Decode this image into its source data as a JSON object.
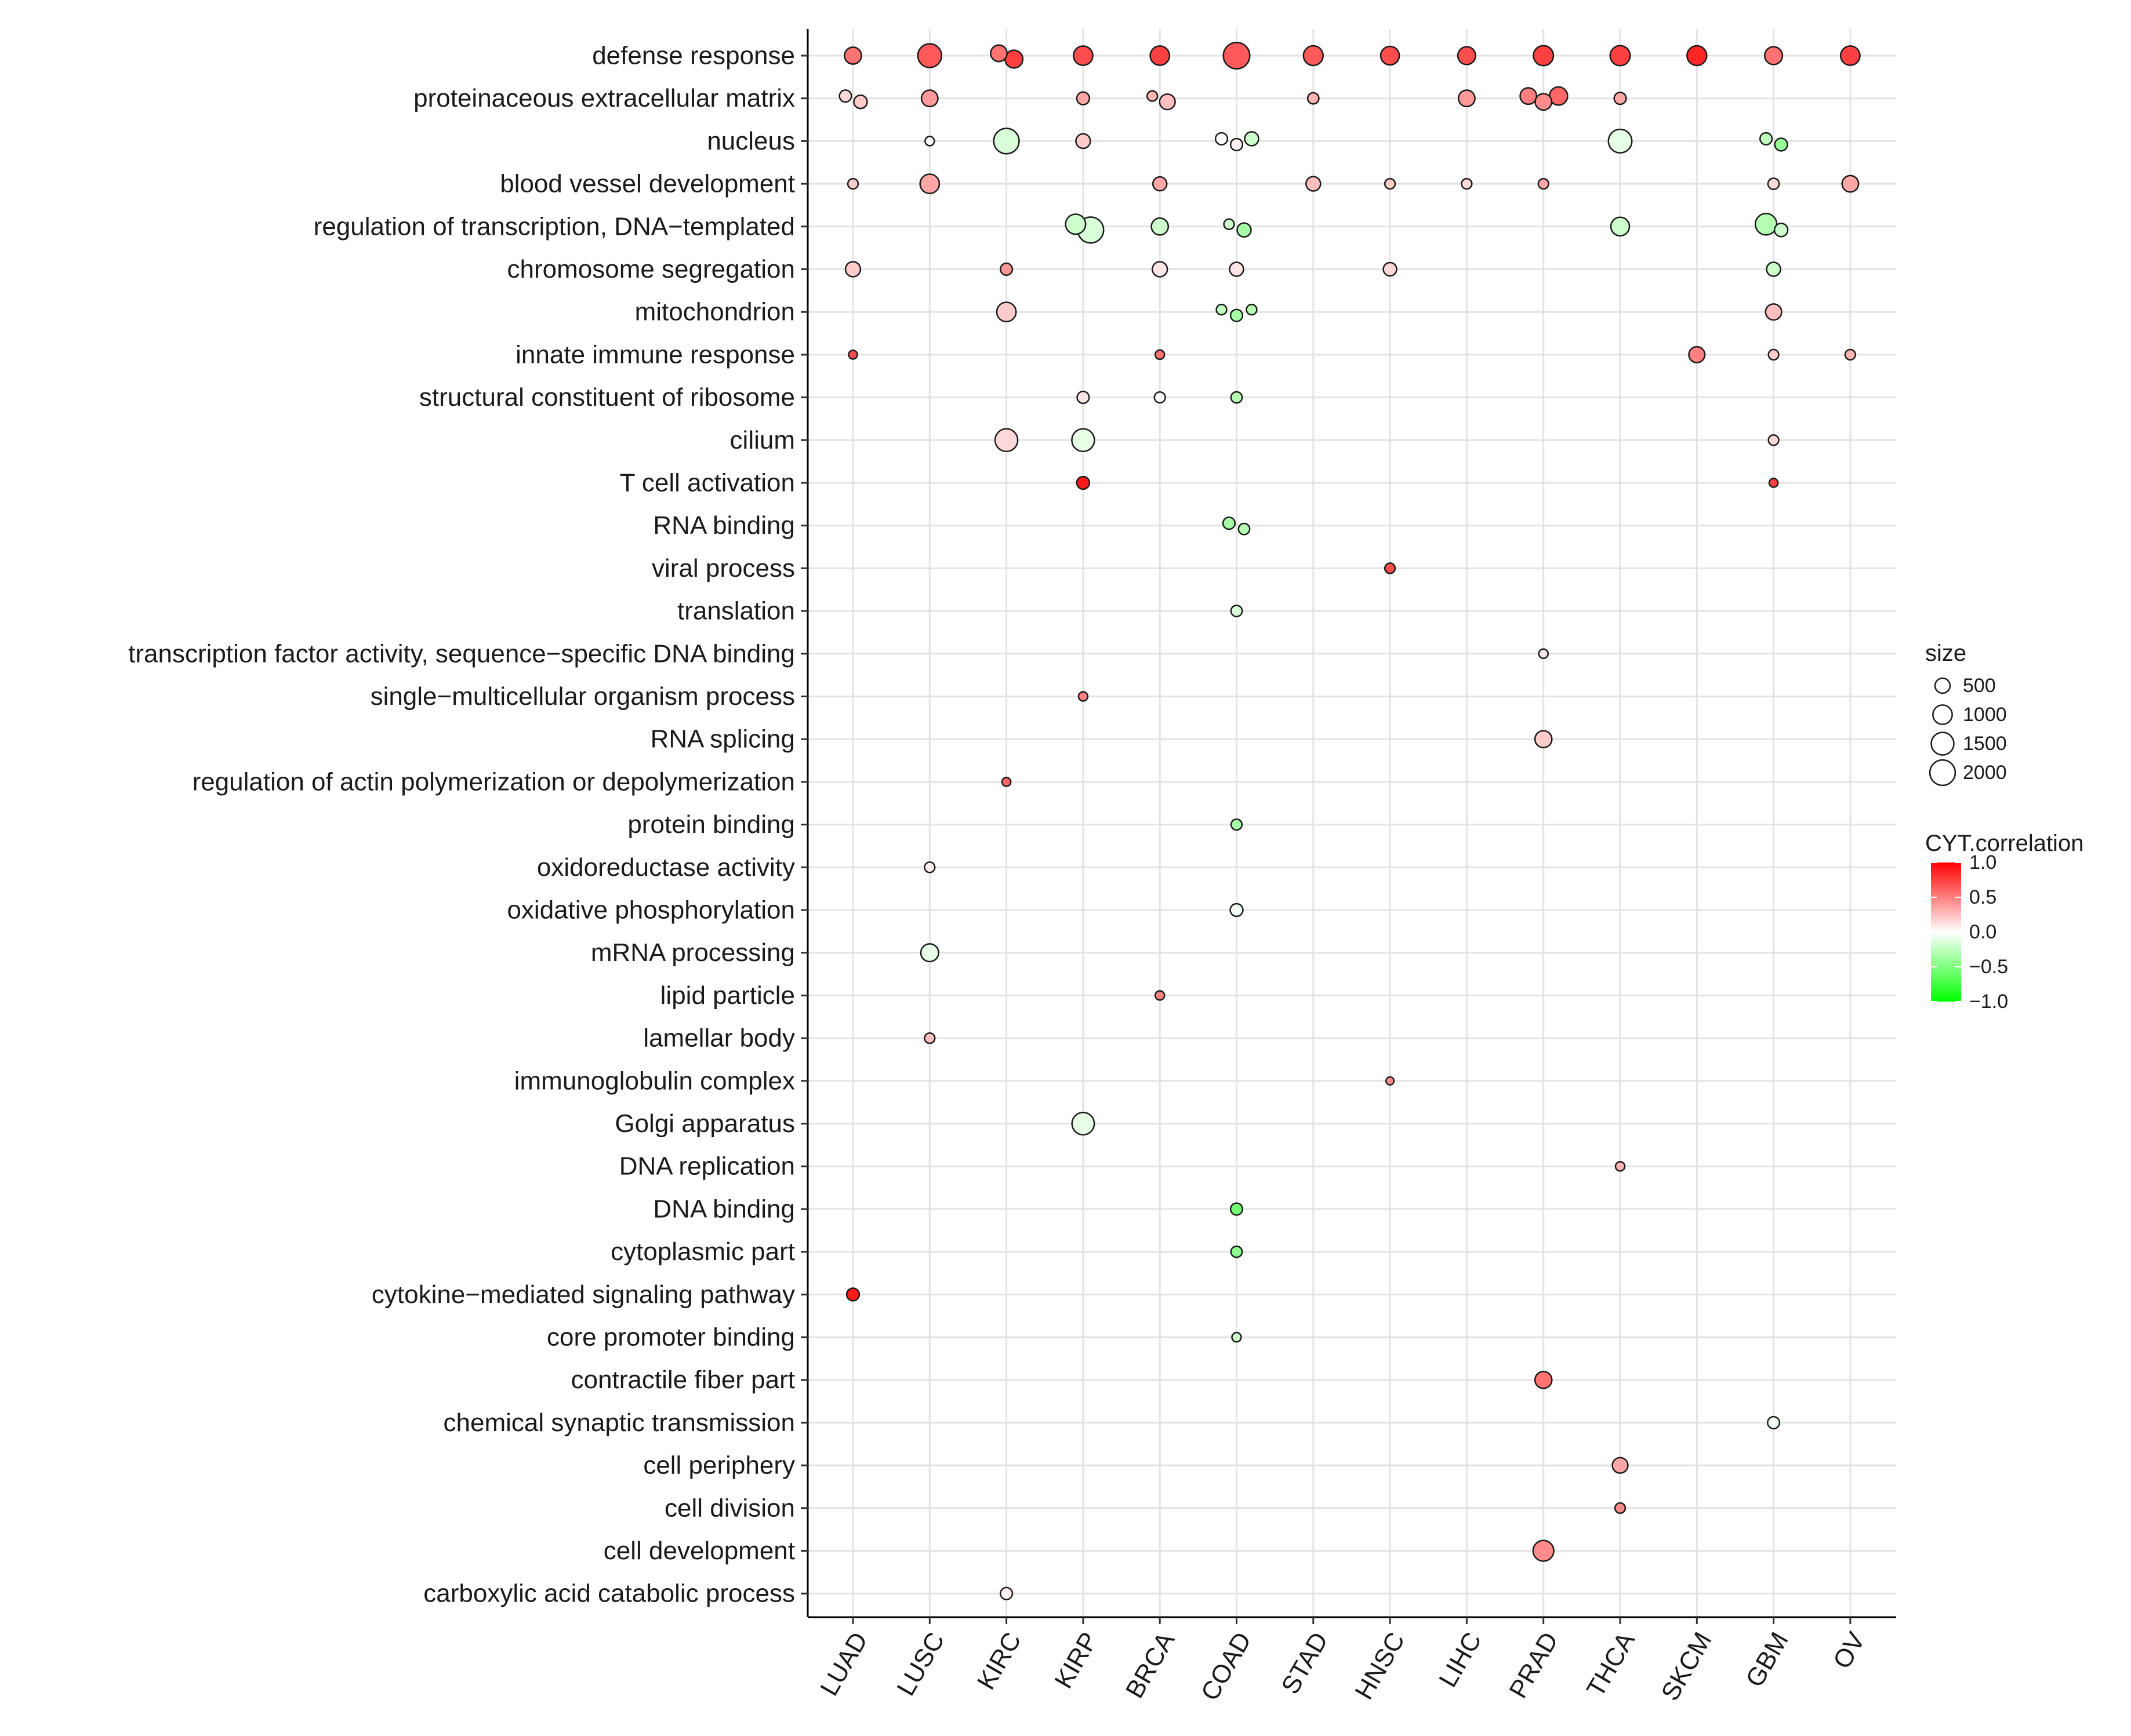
{
  "chart_data": {
    "type": "scatter",
    "x_categories": [
      "LUAD",
      "LUSC",
      "KIRC",
      "KIRP",
      "BRCA",
      "COAD",
      "STAD",
      "HNSC",
      "LIHC",
      "PRAD",
      "THCA",
      "SKCM",
      "GBM",
      "OV"
    ],
    "y_categories": [
      "defense response",
      "proteinaceous extracellular matrix",
      "nucleus",
      "blood vessel development",
      "regulation of transcription, DNA−templated",
      "chromosome segregation",
      "mitochondrion",
      "innate immune response",
      "structural constituent of ribosome",
      "cilium",
      "T cell activation",
      "RNA binding",
      "viral process",
      "translation",
      "transcription factor activity, sequence−specific DNA binding",
      "single−multicellular organism process",
      "RNA splicing",
      "regulation of actin polymerization or depolymerization",
      "protein binding",
      "oxidoreductase activity",
      "oxidative phosphorylation",
      "mRNA processing",
      "lipid particle",
      "lamellar body",
      "immunoglobulin complex",
      "Golgi apparatus",
      "DNA replication",
      "DNA binding",
      "cytoplasmic part",
      "cytokine−mediated signaling pathway",
      "core promoter binding",
      "contractile fiber part",
      "chemical synaptic transmission",
      "cell periphery",
      "cell division",
      "cell development",
      "carboxylic acid catabolic process"
    ],
    "points": [
      {
        "x": "LUAD",
        "y": "defense response",
        "size": 700,
        "cyt": 0.55
      },
      {
        "x": "LUSC",
        "y": "defense response",
        "size": 1700,
        "cyt": 0.65
      },
      {
        "x": "KIRC",
        "y": "defense response",
        "size": 650,
        "cyt": 0.55
      },
      {
        "x": "KIRC",
        "y": "defense response",
        "size": 800,
        "cyt": 0.75
      },
      {
        "x": "KIRP",
        "y": "defense response",
        "size": 1000,
        "cyt": 0.7
      },
      {
        "x": "BRCA",
        "y": "defense response",
        "size": 1000,
        "cyt": 0.75
      },
      {
        "x": "COAD",
        "y": "defense response",
        "size": 2200,
        "cyt": 0.65
      },
      {
        "x": "STAD",
        "y": "defense response",
        "size": 1050,
        "cyt": 0.65
      },
      {
        "x": "HNSC",
        "y": "defense response",
        "size": 900,
        "cyt": 0.7
      },
      {
        "x": "LIHC",
        "y": "defense response",
        "size": 800,
        "cyt": 0.7
      },
      {
        "x": "PRAD",
        "y": "defense response",
        "size": 1100,
        "cyt": 0.75
      },
      {
        "x": "THCA",
        "y": "defense response",
        "size": 1100,
        "cyt": 0.75
      },
      {
        "x": "SKCM",
        "y": "defense response",
        "size": 1050,
        "cyt": 0.85
      },
      {
        "x": "GBM",
        "y": "defense response",
        "size": 800,
        "cyt": 0.55
      },
      {
        "x": "OV",
        "y": "defense response",
        "size": 1000,
        "cyt": 0.75
      },
      {
        "x": "LUAD",
        "y": "proteinaceous extracellular matrix",
        "size": 250,
        "cyt": 0.15
      },
      {
        "x": "LUAD",
        "y": "proteinaceous extracellular matrix",
        "size": 350,
        "cyt": 0.2
      },
      {
        "x": "LUSC",
        "y": "proteinaceous extracellular matrix",
        "size": 650,
        "cyt": 0.4
      },
      {
        "x": "KIRP",
        "y": "proteinaceous extracellular matrix",
        "size": 300,
        "cyt": 0.35
      },
      {
        "x": "BRCA",
        "y": "proteinaceous extracellular matrix",
        "size": 150,
        "cyt": 0.3
      },
      {
        "x": "BRCA",
        "y": "proteinaceous extracellular matrix",
        "size": 550,
        "cyt": 0.25
      },
      {
        "x": "STAD",
        "y": "proteinaceous extracellular matrix",
        "size": 200,
        "cyt": 0.3
      },
      {
        "x": "LIHC",
        "y": "proteinaceous extracellular matrix",
        "size": 650,
        "cyt": 0.4
      },
      {
        "x": "PRAD",
        "y": "proteinaceous extracellular matrix",
        "size": 650,
        "cyt": 0.5
      },
      {
        "x": "PRAD",
        "y": "proteinaceous extracellular matrix",
        "size": 650,
        "cyt": 0.45
      },
      {
        "x": "PRAD",
        "y": "proteinaceous extracellular matrix",
        "size": 850,
        "cyt": 0.6
      },
      {
        "x": "THCA",
        "y": "proteinaceous extracellular matrix",
        "size": 250,
        "cyt": 0.35
      },
      {
        "x": "LUSC",
        "y": "nucleus",
        "size": 100,
        "cyt": 0.0
      },
      {
        "x": "KIRC",
        "y": "nucleus",
        "size": 2000,
        "cyt": -0.15
      },
      {
        "x": "KIRP",
        "y": "nucleus",
        "size": 450,
        "cyt": 0.2
      },
      {
        "x": "COAD",
        "y": "nucleus",
        "size": 250,
        "cyt": 0.0
      },
      {
        "x": "COAD",
        "y": "nucleus",
        "size": 250,
        "cyt": 0.05
      },
      {
        "x": "COAD",
        "y": "nucleus",
        "size": 400,
        "cyt": -0.2
      },
      {
        "x": "THCA",
        "y": "nucleus",
        "size": 1650,
        "cyt": -0.1
      },
      {
        "x": "GBM",
        "y": "nucleus",
        "size": 250,
        "cyt": -0.25
      },
      {
        "x": "GBM",
        "y": "nucleus",
        "size": 300,
        "cyt": -0.4
      },
      {
        "x": "LUAD",
        "y": "blood vessel development",
        "size": 150,
        "cyt": 0.2
      },
      {
        "x": "LUSC",
        "y": "blood vessel development",
        "size": 1000,
        "cyt": 0.35
      },
      {
        "x": "BRCA",
        "y": "blood vessel development",
        "size": 400,
        "cyt": 0.35
      },
      {
        "x": "STAD",
        "y": "blood vessel development",
        "size": 450,
        "cyt": 0.25
      },
      {
        "x": "HNSC",
        "y": "blood vessel development",
        "size": 150,
        "cyt": 0.2
      },
      {
        "x": "LIHC",
        "y": "blood vessel development",
        "size": 150,
        "cyt": 0.15
      },
      {
        "x": "PRAD",
        "y": "blood vessel development",
        "size": 150,
        "cyt": 0.35
      },
      {
        "x": "GBM",
        "y": "blood vessel development",
        "size": 200,
        "cyt": 0.15
      },
      {
        "x": "OV",
        "y": "blood vessel development",
        "size": 650,
        "cyt": 0.35
      },
      {
        "x": "KIRP",
        "y": "regulation of transcription, DNA−templated",
        "size": 1100,
        "cyt": -0.2
      },
      {
        "x": "KIRP",
        "y": "regulation of transcription, DNA−templated",
        "size": 2100,
        "cyt": -0.15
      },
      {
        "x": "BRCA",
        "y": "regulation of transcription, DNA−templated",
        "size": 700,
        "cyt": -0.2
      },
      {
        "x": "COAD",
        "y": "regulation of transcription, DNA−templated",
        "size": 150,
        "cyt": -0.2
      },
      {
        "x": "COAD",
        "y": "regulation of transcription, DNA−templated",
        "size": 400,
        "cyt": -0.35
      },
      {
        "x": "THCA",
        "y": "regulation of transcription, DNA−templated",
        "size": 900,
        "cyt": -0.2
      },
      {
        "x": "GBM",
        "y": "regulation of transcription, DNA−templated",
        "size": 1300,
        "cyt": -0.3
      },
      {
        "x": "GBM",
        "y": "regulation of transcription, DNA−templated",
        "size": 350,
        "cyt": -0.2
      },
      {
        "x": "LUAD",
        "y": "chromosome segregation",
        "size": 500,
        "cyt": 0.2
      },
      {
        "x": "KIRC",
        "y": "chromosome segregation",
        "size": 250,
        "cyt": 0.4
      },
      {
        "x": "BRCA",
        "y": "chromosome segregation",
        "size": 500,
        "cyt": 0.1
      },
      {
        "x": "COAD",
        "y": "chromosome segregation",
        "size": 400,
        "cyt": 0.1
      },
      {
        "x": "HNSC",
        "y": "chromosome segregation",
        "size": 350,
        "cyt": 0.15
      },
      {
        "x": "GBM",
        "y": "chromosome segregation",
        "size": 400,
        "cyt": -0.2
      },
      {
        "x": "KIRC",
        "y": "mitochondrion",
        "size": 1000,
        "cyt": 0.2
      },
      {
        "x": "COAD",
        "y": "mitochondrion",
        "size": 150,
        "cyt": -0.25
      },
      {
        "x": "COAD",
        "y": "mitochondrion",
        "size": 250,
        "cyt": -0.35
      },
      {
        "x": "COAD",
        "y": "mitochondrion",
        "size": 150,
        "cyt": -0.3
      },
      {
        "x": "GBM",
        "y": "mitochondrion",
        "size": 600,
        "cyt": 0.25
      },
      {
        "x": "LUAD",
        "y": "innate immune response",
        "size": 80,
        "cyt": 0.7
      },
      {
        "x": "BRCA",
        "y": "innate immune response",
        "size": 100,
        "cyt": 0.55
      },
      {
        "x": "SKCM",
        "y": "innate immune response",
        "size": 600,
        "cyt": 0.5
      },
      {
        "x": "GBM",
        "y": "innate immune response",
        "size": 150,
        "cyt": 0.2
      },
      {
        "x": "OV",
        "y": "innate immune response",
        "size": 150,
        "cyt": 0.3
      },
      {
        "x": "KIRP",
        "y": "structural constituent of ribosome",
        "size": 250,
        "cyt": 0.1
      },
      {
        "x": "BRCA",
        "y": "structural constituent of ribosome",
        "size": 180,
        "cyt": 0.0
      },
      {
        "x": "COAD",
        "y": "structural constituent of ribosome",
        "size": 200,
        "cyt": -0.3
      },
      {
        "x": "KIRC",
        "y": "cilium",
        "size": 1500,
        "cyt": 0.15
      },
      {
        "x": "KIRP",
        "y": "cilium",
        "size": 1500,
        "cyt": -0.1
      },
      {
        "x": "GBM",
        "y": "cilium",
        "size": 150,
        "cyt": 0.15
      },
      {
        "x": "KIRP",
        "y": "T cell activation",
        "size": 300,
        "cyt": 0.9
      },
      {
        "x": "GBM",
        "y": "T cell activation",
        "size": 80,
        "cyt": 0.75
      },
      {
        "x": "COAD",
        "y": "RNA binding",
        "size": 250,
        "cyt": -0.35
      },
      {
        "x": "COAD",
        "y": "RNA binding",
        "size": 200,
        "cyt": -0.3
      },
      {
        "x": "HNSC",
        "y": "viral process",
        "size": 150,
        "cyt": 0.7
      },
      {
        "x": "COAD",
        "y": "translation",
        "size": 200,
        "cyt": -0.15
      },
      {
        "x": "PRAD",
        "y": "transcription factor activity, sequence−specific DNA binding",
        "size": 100,
        "cyt": 0.1
      },
      {
        "x": "KIRP",
        "y": "single−multicellular organism process",
        "size": 100,
        "cyt": 0.5
      },
      {
        "x": "PRAD",
        "y": "RNA splicing",
        "size": 700,
        "cyt": 0.2
      },
      {
        "x": "KIRC",
        "y": "regulation of actin polymerization or depolymerization",
        "size": 80,
        "cyt": 0.6
      },
      {
        "x": "COAD",
        "y": "protein binding",
        "size": 180,
        "cyt": -0.35
      },
      {
        "x": "LUSC",
        "y": "oxidoreductase activity",
        "size": 150,
        "cyt": 0.05
      },
      {
        "x": "COAD",
        "y": "oxidative phosphorylation",
        "size": 300,
        "cyt": -0.05
      },
      {
        "x": "LUSC",
        "y": "mRNA processing",
        "size": 800,
        "cyt": -0.1
      },
      {
        "x": "BRCA",
        "y": "lipid particle",
        "size": 100,
        "cyt": 0.5
      },
      {
        "x": "LUSC",
        "y": "lamellar body",
        "size": 150,
        "cyt": 0.25
      },
      {
        "x": "HNSC",
        "y": "immunoglobulin complex",
        "size": 50,
        "cyt": 0.45
      },
      {
        "x": "KIRP",
        "y": "Golgi apparatus",
        "size": 1450,
        "cyt": -0.1
      },
      {
        "x": "THCA",
        "y": "DNA replication",
        "size": 100,
        "cyt": 0.3
      },
      {
        "x": "COAD",
        "y": "DNA binding",
        "size": 250,
        "cyt": -0.55
      },
      {
        "x": "COAD",
        "y": "cytoplasmic part",
        "size": 200,
        "cyt": -0.45
      },
      {
        "x": "LUAD",
        "y": "cytokine−mediated signaling pathway",
        "size": 300,
        "cyt": 0.9
      },
      {
        "x": "COAD",
        "y": "core promoter binding",
        "size": 100,
        "cyt": -0.2
      },
      {
        "x": "PRAD",
        "y": "contractile fiber part",
        "size": 700,
        "cyt": 0.55
      },
      {
        "x": "GBM",
        "y": "chemical synaptic transmission",
        "size": 250,
        "cyt": -0.05
      },
      {
        "x": "THCA",
        "y": "cell periphery",
        "size": 550,
        "cyt": 0.35
      },
      {
        "x": "THCA",
        "y": "cell division",
        "size": 150,
        "cyt": 0.45
      },
      {
        "x": "PRAD",
        "y": "cell development",
        "size": 1200,
        "cyt": 0.45
      },
      {
        "x": "KIRC",
        "y": "carboxylic acid catabolic process",
        "size": 250,
        "cyt": 0.05
      }
    ],
    "size_legend": {
      "title": "size",
      "values": [
        500,
        1000,
        1500,
        2000
      ]
    },
    "color_legend": {
      "title": "CYT.correlation",
      "ticks": [
        1.0,
        0.5,
        0.0,
        -0.5,
        -1.0
      ],
      "tick_labels": [
        "1.0",
        "0.5",
        "0.0",
        "−0.5",
        "−1.0"
      ],
      "low_color": "#00ff00",
      "mid_color": "#ffffff",
      "high_color": "#ff0000",
      "range": [
        -1,
        1
      ]
    },
    "grid": true,
    "legend_position": "right"
  }
}
